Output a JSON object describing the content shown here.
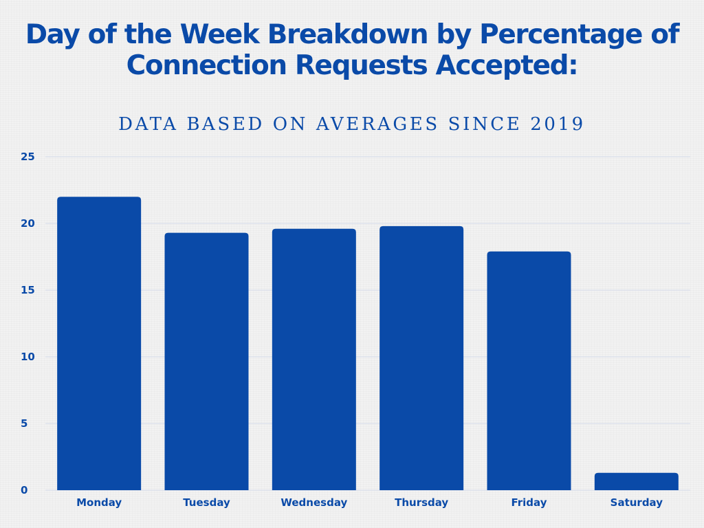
{
  "chart_data": {
    "type": "bar",
    "title": "Day of the Week Breakdown by Percentage of Connection Requests Accepted:",
    "subtitle": "DATA BASED ON AVERAGES SINCE 2019",
    "categories": [
      "Monday",
      "Tuesday",
      "Wednesday",
      "Thursday",
      "Friday",
      "Saturday"
    ],
    "values": [
      22,
      19.3,
      19.6,
      19.8,
      17.9,
      1.3
    ],
    "ylim": [
      0,
      25
    ],
    "yticks": [
      "0",
      "5",
      "10",
      "15",
      "20",
      "25"
    ],
    "xlabel": "",
    "ylabel": "",
    "grid": true,
    "legend": "none",
    "colors": {
      "bar": "#0a4aa8",
      "text": "#0a4aa8",
      "grid": "#d5dcea"
    }
  }
}
